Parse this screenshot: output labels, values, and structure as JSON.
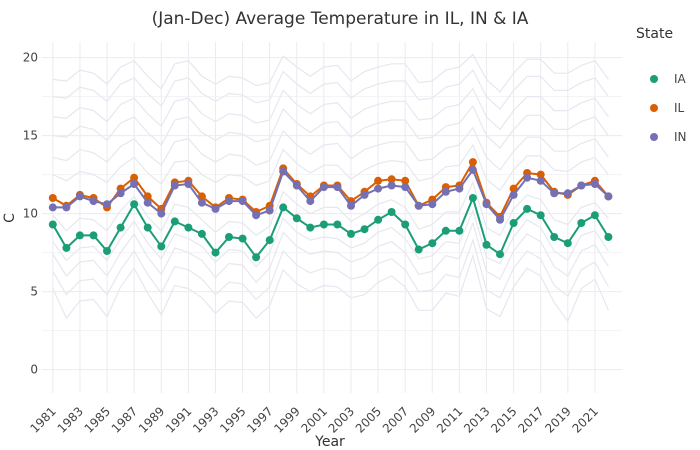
{
  "chart_data": {
    "type": "line",
    "title": "(Jan-Dec)  Average Temperature in IL, IN & IA",
    "xlabel": "Year",
    "ylabel": "C",
    "xlim": [
      1980.2,
      2023
    ],
    "ylim": [
      -1.5,
      21
    ],
    "x_ticks": [
      1981,
      1983,
      1985,
      1987,
      1989,
      1991,
      1993,
      1995,
      1997,
      1999,
      2001,
      2003,
      2005,
      2007,
      2009,
      2011,
      2013,
      2015,
      2017,
      2019,
      2021
    ],
    "y_ticks": [
      0,
      5,
      10,
      15,
      20
    ],
    "grid": true,
    "legend": {
      "title": "State",
      "position": "right"
    },
    "x": [
      1981,
      1982,
      1983,
      1984,
      1985,
      1986,
      1987,
      1988,
      1989,
      1990,
      1991,
      1992,
      1993,
      1994,
      1995,
      1996,
      1997,
      1998,
      1999,
      2000,
      2001,
      2002,
      2003,
      2004,
      2005,
      2006,
      2007,
      2008,
      2009,
      2010,
      2011,
      2012,
      2013,
      2014,
      2015,
      2016,
      2017,
      2018,
      2019,
      2020,
      2021,
      2022
    ],
    "series": [
      {
        "name": "IA",
        "color": "#1b9e77",
        "values": [
          9.3,
          7.8,
          8.6,
          8.6,
          7.6,
          9.1,
          10.6,
          9.1,
          7.9,
          9.5,
          9.1,
          8.7,
          7.5,
          8.5,
          8.4,
          7.2,
          8.3,
          10.4,
          9.7,
          9.1,
          9.3,
          9.3,
          8.7,
          9.0,
          9.6,
          10.1,
          9.3,
          7.7,
          8.1,
          8.9,
          8.9,
          11.0,
          8.0,
          7.4,
          9.4,
          10.3,
          9.9,
          8.5,
          8.1,
          9.4,
          9.9,
          8.5
        ]
      },
      {
        "name": "IL",
        "color": "#d95f02",
        "values": [
          11.0,
          10.5,
          11.2,
          11.0,
          10.4,
          11.6,
          12.3,
          11.1,
          10.3,
          12.0,
          12.1,
          11.1,
          10.4,
          11.0,
          10.9,
          10.1,
          10.5,
          12.9,
          11.9,
          11.1,
          11.8,
          11.8,
          10.8,
          11.4,
          12.1,
          12.2,
          12.1,
          10.5,
          10.9,
          11.7,
          11.8,
          13.3,
          10.7,
          9.8,
          11.6,
          12.6,
          12.5,
          11.4,
          11.2,
          11.8,
          12.1,
          11.1
        ]
      },
      {
        "name": "IN",
        "color": "#7570b3",
        "values": [
          10.4,
          10.4,
          11.1,
          10.8,
          10.6,
          11.3,
          11.9,
          10.7,
          10.0,
          11.8,
          11.9,
          10.7,
          10.3,
          10.8,
          10.8,
          9.9,
          10.2,
          12.7,
          11.8,
          10.8,
          11.7,
          11.7,
          10.5,
          11.2,
          11.6,
          11.8,
          11.7,
          10.5,
          10.6,
          11.4,
          11.6,
          12.8,
          10.6,
          9.6,
          11.2,
          12.3,
          12.1,
          11.3,
          11.3,
          11.8,
          11.9,
          11.1
        ]
      }
    ],
    "background_series": {
      "color": "#e6e7f0",
      "values": [
        [
          5.2,
          3.3,
          4.4,
          4.5,
          3.4,
          5.3,
          6.5,
          4.9,
          3.5,
          5.4,
          5.2,
          4.6,
          3.6,
          4.4,
          4.3,
          3.3,
          4.1,
          6.4,
          5.5,
          5.0,
          5.4,
          5.3,
          4.6,
          4.8,
          5.6,
          6.0,
          5.3,
          3.8,
          3.8,
          4.9,
          4.7,
          7.3,
          3.9,
          3.4,
          5.3,
          6.5,
          6.0,
          4.3,
          3.1,
          5.2,
          5.8,
          3.8
        ],
        [
          6.3,
          4.8,
          5.7,
          5.8,
          4.8,
          6.4,
          7.6,
          6.1,
          4.9,
          6.6,
          6.4,
          5.8,
          4.8,
          5.6,
          5.5,
          4.5,
          5.3,
          7.6,
          6.7,
          6.2,
          6.5,
          6.4,
          5.8,
          6.0,
          6.8,
          7.1,
          6.4,
          5.0,
          5.1,
          6.1,
          5.9,
          8.3,
          5.1,
          4.6,
          6.5,
          7.6,
          7.1,
          5.4,
          4.7,
          6.4,
          6.9,
          5.3
        ],
        [
          7.4,
          6.0,
          6.9,
          7.0,
          6.0,
          7.5,
          8.7,
          7.2,
          6.1,
          7.8,
          7.5,
          7.0,
          5.9,
          6.8,
          6.7,
          5.6,
          6.5,
          8.8,
          7.9,
          7.4,
          7.6,
          7.5,
          6.9,
          7.2,
          7.9,
          8.2,
          7.5,
          6.1,
          6.3,
          7.3,
          7.1,
          9.4,
          6.3,
          5.8,
          7.6,
          8.7,
          8.2,
          6.6,
          6.0,
          7.6,
          8.0,
          6.6
        ],
        [
          8.2,
          7.0,
          7.8,
          7.9,
          7.0,
          8.4,
          9.5,
          8.1,
          7.1,
          8.7,
          8.4,
          7.9,
          6.9,
          7.7,
          7.6,
          6.6,
          7.5,
          9.7,
          8.8,
          8.3,
          8.5,
          8.4,
          7.8,
          8.1,
          8.8,
          9.1,
          8.4,
          7.1,
          7.3,
          8.2,
          8.1,
          10.2,
          7.2,
          6.8,
          8.5,
          9.6,
          9.1,
          7.6,
          7.0,
          8.6,
          8.9,
          7.6
        ],
        [
          9.9,
          8.9,
          9.7,
          9.6,
          8.9,
          10.2,
          11.1,
          9.8,
          8.9,
          10.6,
          10.4,
          9.6,
          8.8,
          9.5,
          9.4,
          8.6,
          9.2,
          11.4,
          10.6,
          10.0,
          10.4,
          10.4,
          9.5,
          10.0,
          10.6,
          10.9,
          10.4,
          9.0,
          9.3,
          10.1,
          10.1,
          12.0,
          9.1,
          8.6,
          10.3,
          11.2,
          10.9,
          9.6,
          9.3,
          10.4,
          10.7,
          9.7
        ],
        [
          12.5,
          12.1,
          12.7,
          12.5,
          12.0,
          13.0,
          13.6,
          12.6,
          11.9,
          13.3,
          13.4,
          12.5,
          12.0,
          12.5,
          12.4,
          11.8,
          12.1,
          14.1,
          13.2,
          12.6,
          13.1,
          13.1,
          12.2,
          12.8,
          13.2,
          13.4,
          13.3,
          12.1,
          12.3,
          13.0,
          13.1,
          14.4,
          12.2,
          11.5,
          12.8,
          13.7,
          13.7,
          12.8,
          12.7,
          13.3,
          13.6,
          12.5
        ],
        [
          13.6,
          13.4,
          14.1,
          13.9,
          13.3,
          14.3,
          14.8,
          13.8,
          13.1,
          14.6,
          14.8,
          13.8,
          13.3,
          13.8,
          13.7,
          13.1,
          13.4,
          15.3,
          14.4,
          13.8,
          14.4,
          14.5,
          13.5,
          14.1,
          14.4,
          14.6,
          14.6,
          13.4,
          13.5,
          14.2,
          14.4,
          15.5,
          13.6,
          12.8,
          14.0,
          14.9,
          14.9,
          14.0,
          14.0,
          14.5,
          14.8,
          13.6
        ],
        [
          15.0,
          14.9,
          15.6,
          15.4,
          14.7,
          15.8,
          16.2,
          15.2,
          14.4,
          16.0,
          16.2,
          15.2,
          14.7,
          15.2,
          15.1,
          14.6,
          14.8,
          16.7,
          15.8,
          15.2,
          15.8,
          15.9,
          14.9,
          15.5,
          15.8,
          16.0,
          16.0,
          14.8,
          14.9,
          15.6,
          15.8,
          16.9,
          15.0,
          14.2,
          15.4,
          16.3,
          16.3,
          15.4,
          15.4,
          15.9,
          16.2,
          15.0
        ],
        [
          16.2,
          16.1,
          16.8,
          16.6,
          15.9,
          17.0,
          17.4,
          16.4,
          15.6,
          17.2,
          17.4,
          16.4,
          15.9,
          16.4,
          16.3,
          15.8,
          16.0,
          17.9,
          17.0,
          16.4,
          17.0,
          17.1,
          16.1,
          16.7,
          17.0,
          17.2,
          17.2,
          16.0,
          16.1,
          16.8,
          17.0,
          18.0,
          16.2,
          15.4,
          16.6,
          17.5,
          17.5,
          16.6,
          16.6,
          17.1,
          17.4,
          16.2
        ],
        [
          17.5,
          17.4,
          18.1,
          17.9,
          17.2,
          18.3,
          18.7,
          17.7,
          16.9,
          18.5,
          18.7,
          17.7,
          17.2,
          17.7,
          17.6,
          17.1,
          17.3,
          19.1,
          18.3,
          17.7,
          18.3,
          18.4,
          17.4,
          18.0,
          18.3,
          18.5,
          18.5,
          17.3,
          17.4,
          18.1,
          18.3,
          19.2,
          17.5,
          16.7,
          17.9,
          18.8,
          18.8,
          17.9,
          17.9,
          18.4,
          18.7,
          17.5
        ],
        [
          18.6,
          18.5,
          19.2,
          19.0,
          18.3,
          19.4,
          19.8,
          18.8,
          18.0,
          19.6,
          19.8,
          18.8,
          18.3,
          18.8,
          18.7,
          18.2,
          18.4,
          20.1,
          19.4,
          18.8,
          19.4,
          19.5,
          18.5,
          19.1,
          19.4,
          19.6,
          19.6,
          18.4,
          18.5,
          19.2,
          19.4,
          20.2,
          18.6,
          17.8,
          19.0,
          19.9,
          19.9,
          19.0,
          19.0,
          19.5,
          19.8,
          18.6
        ]
      ]
    }
  }
}
